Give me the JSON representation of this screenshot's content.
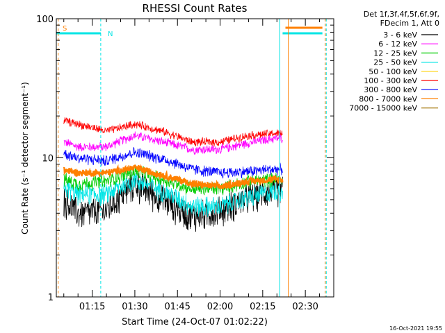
{
  "chart_data": {
    "type": "line",
    "title": "RHESSI Count Rates",
    "xlabel": "Start Time (24-Oct-07 01:02:22)",
    "ylabel": "Count Rate (s⁻¹ detector segment⁻¹)",
    "yscale": "log",
    "ylim": [
      1,
      100
    ],
    "xlim": [
      "01:02:22",
      "02:40:00"
    ],
    "y_ticks": [
      "1",
      "10",
      "100"
    ],
    "x_ticks": [
      "01:15",
      "01:30",
      "01:45",
      "02:00",
      "02:15",
      "02:30"
    ],
    "legend_header": [
      "Det 1f,3f,4f,5f,6f,9f,",
      "FDecim 1, Att 0"
    ],
    "legend_placement": "right",
    "grid": false,
    "series": [
      {
        "name": "3 - 6 keV",
        "color": "#000000",
        "x": [
          "01:05",
          "01:10",
          "01:20",
          "01:30",
          "01:40",
          "01:50",
          "02:00",
          "02:10",
          "02:19",
          "02:22"
        ],
        "y": [
          5.0,
          4.0,
          4.2,
          6.5,
          5.0,
          3.8,
          4.2,
          5.2,
          6.0,
          6.0
        ]
      },
      {
        "name": "6 - 12 keV",
        "color": "#ff00ff",
        "x": [
          "01:05",
          "01:10",
          "01:20",
          "01:30",
          "01:40",
          "01:50",
          "02:00",
          "02:10",
          "02:19",
          "02:22"
        ],
        "y": [
          13.0,
          12.0,
          12.0,
          14.5,
          13.0,
          11.5,
          11.5,
          12.8,
          13.8,
          13.8
        ]
      },
      {
        "name": "12 - 25 keV",
        "color": "#00cc00",
        "x": [
          "01:05",
          "01:10",
          "01:20",
          "01:30",
          "01:40",
          "01:50",
          "02:00",
          "02:10",
          "02:19",
          "02:22"
        ],
        "y": [
          7.0,
          6.5,
          6.8,
          8.0,
          7.0,
          6.0,
          6.0,
          6.8,
          7.0,
          7.0
        ]
      },
      {
        "name": "25 - 50 keV",
        "color": "#00e5e5",
        "x": [
          "01:05",
          "01:10",
          "01:20",
          "01:30",
          "01:40",
          "01:50",
          "02:00",
          "02:10",
          "02:19",
          "02:22"
        ],
        "y": [
          6.2,
          5.5,
          5.5,
          7.0,
          5.8,
          4.5,
          4.5,
          5.2,
          5.8,
          5.8
        ]
      },
      {
        "name": "50 - 100 keV",
        "color": "#ffd000"
      },
      {
        "name": "100 - 300 keV",
        "color": "#ff0000",
        "x": [
          "01:05",
          "01:10",
          "01:20",
          "01:30",
          "01:40",
          "01:50",
          "02:00",
          "02:10",
          "02:19",
          "02:22"
        ],
        "y": [
          18.5,
          17.5,
          15.5,
          17.5,
          15.5,
          13.0,
          13.0,
          14.5,
          15.0,
          15.0
        ]
      },
      {
        "name": "300 - 800 keV",
        "color": "#0000ff",
        "x": [
          "01:05",
          "01:10",
          "01:20",
          "01:30",
          "01:40",
          "01:50",
          "02:00",
          "02:10",
          "02:19",
          "02:22"
        ],
        "y": [
          10.8,
          10.0,
          9.5,
          11.0,
          9.8,
          8.3,
          7.8,
          8.0,
          8.3,
          8.3
        ]
      },
      {
        "name": "800 - 7000 keV",
        "color": "#ff8000",
        "x": [
          "01:05",
          "01:10",
          "01:20",
          "01:30",
          "01:40",
          "01:50",
          "02:00",
          "02:10",
          "02:19",
          "02:22"
        ],
        "y": [
          8.2,
          7.8,
          7.8,
          8.5,
          7.5,
          6.5,
          6.2,
          6.8,
          7.0,
          7.0
        ]
      },
      {
        "name": "7000 - 15000 keV",
        "color": "#a07000"
      }
    ],
    "annotations": [
      {
        "label": "S",
        "color": "#ff8000"
      },
      {
        "label": "N",
        "color": "#00e5e5"
      }
    ],
    "footer_date": "16-Oct-2021 19:55"
  }
}
